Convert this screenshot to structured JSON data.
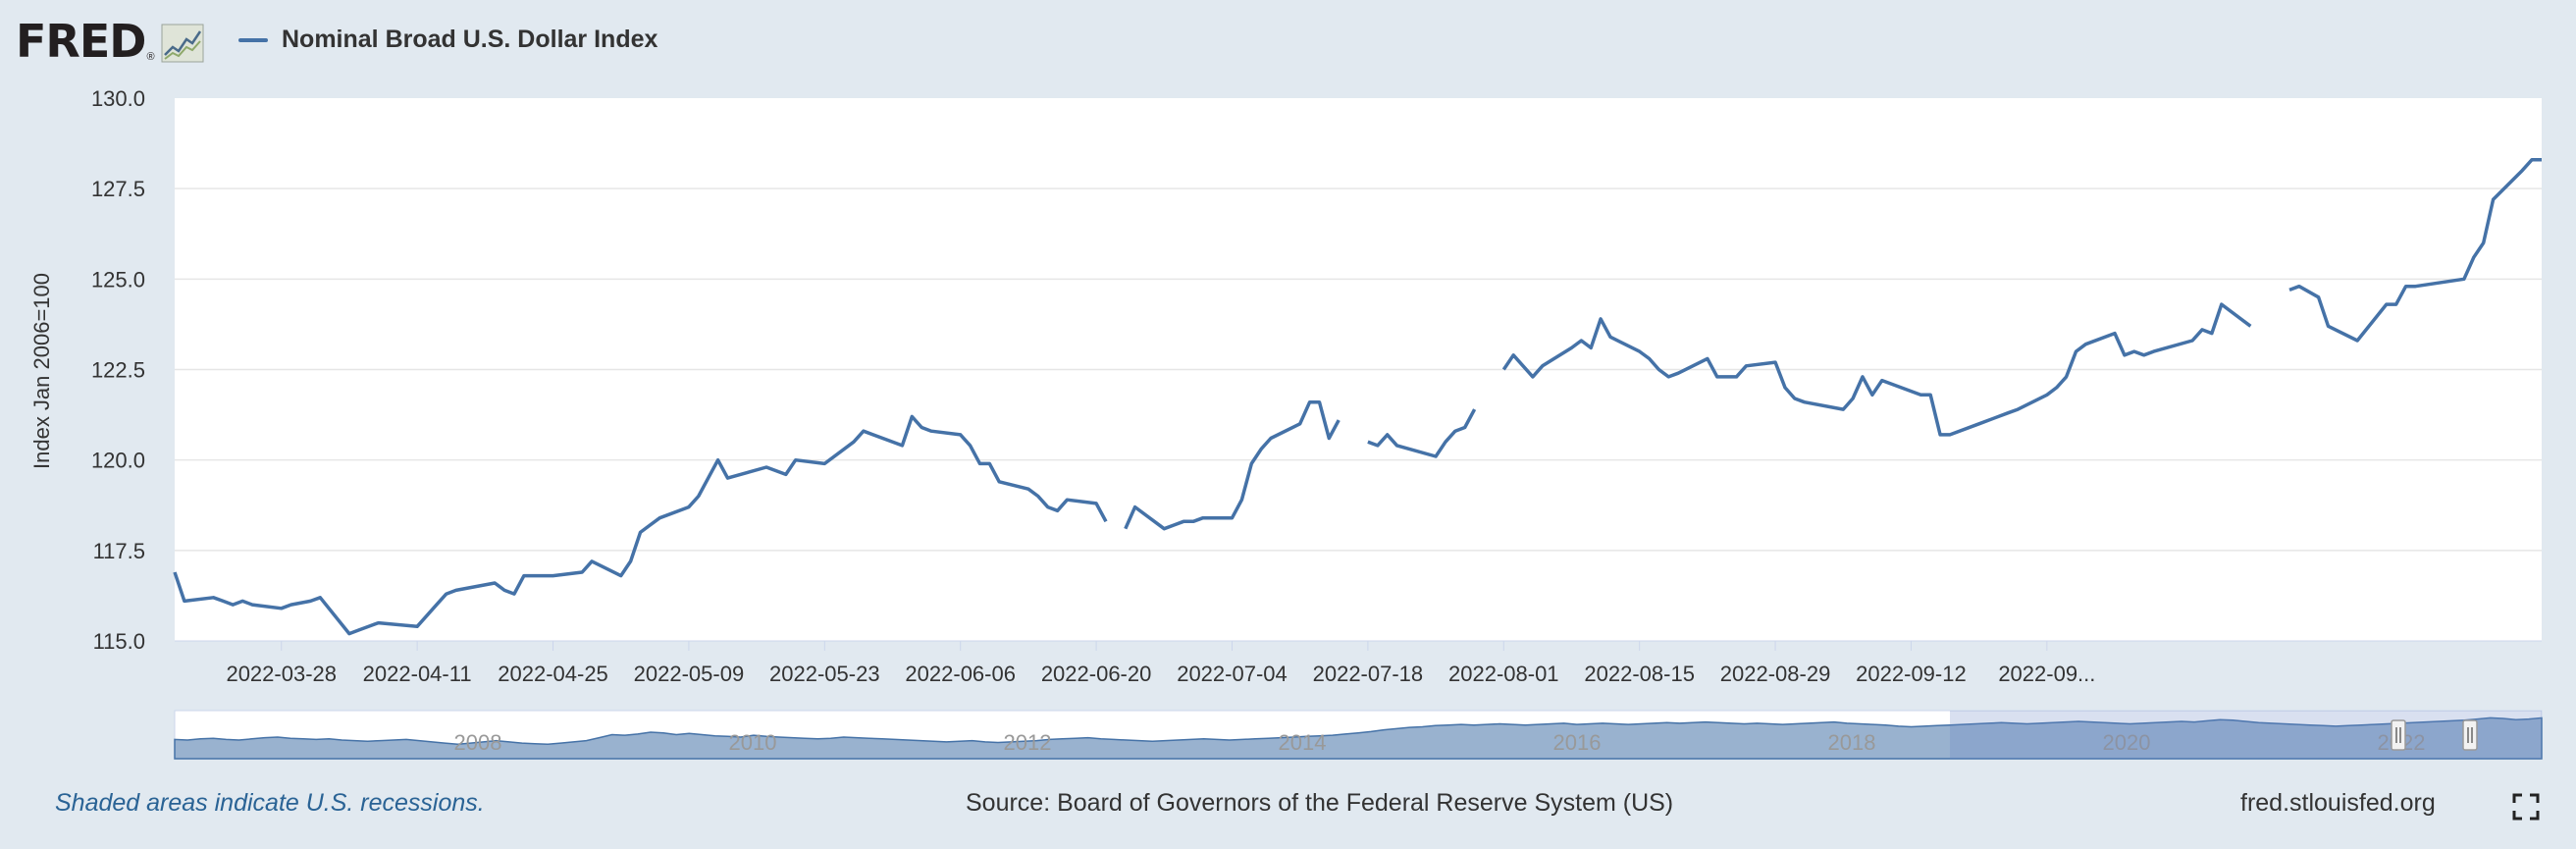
{
  "header": {
    "logo_text": "FRED",
    "logo_mark": "®",
    "logo_icon": "line-chart-icon"
  },
  "chart_data": {
    "type": "line",
    "series": [
      {
        "name": "Nominal Broad U.S. Dollar Index",
        "color": "#4572a7",
        "segments": [
          [
            [
              "2022-03-17",
              116.9
            ],
            [
              "2022-03-18",
              116.1
            ],
            [
              "2022-03-21",
              116.2
            ],
            [
              "2022-03-22",
              116.1
            ],
            [
              "2022-03-23",
              116.0
            ],
            [
              "2022-03-24",
              116.1
            ],
            [
              "2022-03-25",
              116.0
            ],
            [
              "2022-03-28",
              115.9
            ],
            [
              "2022-03-29",
              116.0
            ],
            [
              "2022-03-31",
              116.1
            ],
            [
              "2022-04-01",
              116.2
            ],
            [
              "2022-04-04",
              115.2
            ],
            [
              "2022-04-05",
              115.3
            ],
            [
              "2022-04-07",
              115.5
            ],
            [
              "2022-04-11",
              115.4
            ],
            [
              "2022-04-12",
              115.7
            ],
            [
              "2022-04-13",
              116.0
            ],
            [
              "2022-04-14",
              116.3
            ],
            [
              "2022-04-15",
              116.4
            ],
            [
              "2022-04-19",
              116.6
            ],
            [
              "2022-04-20",
              116.4
            ],
            [
              "2022-04-21",
              116.3
            ],
            [
              "2022-04-22",
              116.8
            ],
            [
              "2022-04-25",
              116.8
            ],
            [
              "2022-04-28",
              116.9
            ],
            [
              "2022-04-29",
              117.2
            ],
            [
              "2022-05-02",
              116.8
            ],
            [
              "2022-05-03",
              117.2
            ],
            [
              "2022-05-04",
              118.0
            ],
            [
              "2022-05-05",
              118.2
            ],
            [
              "2022-05-06",
              118.4
            ],
            [
              "2022-05-09",
              118.7
            ],
            [
              "2022-05-10",
              119.0
            ],
            [
              "2022-05-11",
              119.5
            ],
            [
              "2022-05-12",
              120.0
            ],
            [
              "2022-05-13",
              119.5
            ],
            [
              "2022-05-17",
              119.8
            ],
            [
              "2022-05-19",
              119.6
            ],
            [
              "2022-05-20",
              120.0
            ],
            [
              "2022-05-23",
              119.9
            ],
            [
              "2022-05-26",
              120.5
            ],
            [
              "2022-05-27",
              120.8
            ],
            [
              "2022-05-31",
              120.4
            ],
            [
              "2022-06-01",
              121.2
            ],
            [
              "2022-06-02",
              120.9
            ],
            [
              "2022-06-03",
              120.8
            ],
            [
              "2022-06-06",
              120.7
            ],
            [
              "2022-06-07",
              120.4
            ],
            [
              "2022-06-08",
              119.9
            ],
            [
              "2022-06-09",
              119.9
            ],
            [
              "2022-06-10",
              119.4
            ],
            [
              "2022-06-13",
              119.2
            ],
            [
              "2022-06-14",
              119.0
            ],
            [
              "2022-06-15",
              118.7
            ],
            [
              "2022-06-16",
              118.6
            ],
            [
              "2022-06-17",
              118.9
            ],
            [
              "2022-06-20",
              118.8
            ],
            [
              "2022-06-21",
              118.3
            ]
          ],
          [
            [
              "2022-06-23",
              118.1
            ],
            [
              "2022-06-24",
              118.7
            ],
            [
              "2022-06-27",
              118.1
            ],
            [
              "2022-06-28",
              118.2
            ],
            [
              "2022-06-29",
              118.3
            ],
            [
              "2022-06-30",
              118.3
            ],
            [
              "2022-07-01",
              118.4
            ],
            [
              "2022-07-04",
              118.4
            ],
            [
              "2022-07-05",
              118.9
            ],
            [
              "2022-07-06",
              119.9
            ],
            [
              "2022-07-07",
              120.3
            ],
            [
              "2022-07-08",
              120.6
            ],
            [
              "2022-07-11",
              121.0
            ],
            [
              "2022-07-12",
              121.6
            ],
            [
              "2022-07-13",
              121.6
            ],
            [
              "2022-07-14",
              120.6
            ],
            [
              "2022-07-15",
              121.1
            ]
          ],
          [
            [
              "2022-07-18",
              120.5
            ],
            [
              "2022-07-19",
              120.4
            ],
            [
              "2022-07-20",
              120.7
            ],
            [
              "2022-07-21",
              120.4
            ],
            [
              "2022-07-25",
              120.1
            ],
            [
              "2022-07-26",
              120.5
            ],
            [
              "2022-07-27",
              120.8
            ],
            [
              "2022-07-28",
              120.9
            ],
            [
              "2022-07-29",
              121.4
            ]
          ],
          [
            [
              "2022-08-01",
              122.5
            ],
            [
              "2022-08-02",
              122.9
            ],
            [
              "2022-08-03",
              122.6
            ],
            [
              "2022-08-04",
              122.3
            ],
            [
              "2022-08-05",
              122.6
            ],
            [
              "2022-08-08",
              123.1
            ],
            [
              "2022-08-09",
              123.3
            ],
            [
              "2022-08-10",
              123.1
            ],
            [
              "2022-08-11",
              123.9
            ],
            [
              "2022-08-12",
              123.4
            ],
            [
              "2022-08-15",
              123.0
            ],
            [
              "2022-08-16",
              122.8
            ],
            [
              "2022-08-17",
              122.5
            ],
            [
              "2022-08-18",
              122.3
            ],
            [
              "2022-08-19",
              122.4
            ],
            [
              "2022-08-22",
              122.8
            ],
            [
              "2022-08-23",
              122.3
            ],
            [
              "2022-08-24",
              122.3
            ],
            [
              "2022-08-25",
              122.3
            ],
            [
              "2022-08-26",
              122.6
            ],
            [
              "2022-08-29",
              122.7
            ],
            [
              "2022-08-30",
              122.0
            ],
            [
              "2022-08-31",
              121.7
            ],
            [
              "2022-09-01",
              121.6
            ],
            [
              "2022-09-05",
              121.4
            ],
            [
              "2022-09-06",
              121.7
            ],
            [
              "2022-09-07",
              122.3
            ],
            [
              "2022-09-08",
              121.8
            ],
            [
              "2022-09-09",
              122.2
            ],
            [
              "2022-09-12",
              121.9
            ],
            [
              "2022-09-13",
              121.8
            ],
            [
              "2022-09-14",
              121.8
            ],
            [
              "2022-09-15",
              120.7
            ],
            [
              "2022-09-16",
              120.7
            ],
            [
              "2022-09-19",
              121.0
            ],
            [
              "2022-09-22",
              121.3
            ],
            [
              "2022-09-23",
              121.4
            ],
            [
              "2022-09-26",
              121.8
            ],
            [
              "2022-09-27",
              122.0
            ],
            [
              "2022-09-28",
              122.3
            ],
            [
              "2022-09-29",
              123.0
            ],
            [
              "2022-09-30",
              123.2
            ],
            [
              "2022-10-03",
              123.5
            ],
            [
              "2022-10-04",
              122.9
            ],
            [
              "2022-10-05",
              123.0
            ],
            [
              "2022-10-06",
              122.9
            ],
            [
              "2022-10-07",
              123.0
            ],
            [
              "2022-10-11",
              123.3
            ],
            [
              "2022-10-12",
              123.6
            ],
            [
              "2022-10-13",
              123.5
            ],
            [
              "2022-10-14",
              124.3
            ],
            [
              "2022-10-17",
              123.7
            ]
          ],
          [
            [
              "2022-10-21",
              124.7
            ],
            [
              "2022-10-22",
              124.8
            ],
            [
              "2022-10-24",
              124.5
            ],
            [
              "2022-10-25",
              123.7
            ],
            [
              "2022-10-28",
              123.3
            ],
            [
              "2022-10-31",
              124.3
            ],
            [
              "2022-11-01",
              124.3
            ],
            [
              "2022-11-02",
              124.8
            ],
            [
              "2022-11-03",
              124.8
            ],
            [
              "2022-11-08",
              125.0
            ],
            [
              "2022-11-09",
              125.6
            ],
            [
              "2022-11-10",
              126.0
            ],
            [
              "2022-11-11",
              127.2
            ],
            [
              "2022-11-14",
              128.0
            ],
            [
              "2022-11-15",
              128.3
            ],
            [
              "2022-11-16",
              128.3
            ]
          ]
        ]
      }
    ],
    "x_ticks": [
      "2022-03-28",
      "2022-04-11",
      "2022-04-25",
      "2022-05-09",
      "2022-05-23",
      "2022-06-06",
      "2022-06-20",
      "2022-07-04",
      "2022-07-18",
      "2022-08-01",
      "2022-08-15",
      "2022-08-29",
      "2022-09-12",
      "2022-09..."
    ],
    "y_ticks": [
      "115.0",
      "117.5",
      "120.0",
      "122.5",
      "125.0",
      "127.5",
      "130.0"
    ],
    "ylim": [
      115,
      130
    ],
    "ylabel": "Index Jan 2006=100",
    "grid": true,
    "legend_placement": "top-left",
    "navigator": {
      "labels": [
        "2008",
        "2010",
        "2012",
        "2014",
        "2016",
        "2018",
        "2020",
        "2022"
      ],
      "range_start": 0.75,
      "range_end": 1.0,
      "profile": [
        92,
        91,
        93,
        94,
        92,
        91,
        93,
        95,
        96,
        94,
        93,
        92,
        93,
        91,
        90,
        89,
        90,
        91,
        92,
        90,
        88,
        86,
        84,
        86,
        88,
        90,
        88,
        86,
        85,
        84,
        86,
        88,
        90,
        95,
        100,
        99,
        101,
        104,
        103,
        100,
        102,
        100,
        98,
        97,
        96,
        99,
        97,
        96,
        95,
        94,
        93,
        94,
        96,
        95,
        94,
        93,
        92,
        91,
        90,
        89,
        88,
        89,
        90,
        88,
        87,
        88,
        89,
        90,
        92,
        93,
        94,
        95,
        93,
        92,
        91,
        90,
        89,
        90,
        91,
        92,
        93,
        92,
        91,
        92,
        93,
        94,
        95,
        96,
        97,
        98,
        99,
        101,
        103,
        105,
        108,
        110,
        112,
        113,
        115,
        116,
        117,
        116,
        117,
        118,
        117,
        116,
        117,
        118,
        119,
        117,
        118,
        119,
        118,
        117,
        118,
        119,
        120,
        119,
        120,
        121,
        120,
        119,
        118,
        119,
        118,
        117,
        118,
        119,
        120,
        121,
        119,
        118,
        117,
        116,
        114,
        113,
        114,
        115,
        116,
        117,
        118,
        119,
        120,
        119,
        118,
        119,
        120,
        121,
        122,
        121,
        120,
        119,
        118,
        119,
        120,
        121,
        122,
        121,
        123,
        125,
        124,
        122,
        120,
        119,
        118,
        117,
        116,
        115,
        114,
        115,
        116,
        117,
        118,
        119,
        120,
        121,
        122,
        123,
        124,
        126,
        128,
        127,
        125,
        126,
        128
      ]
    }
  },
  "footer": {
    "note": "Shaded areas indicate U.S. recessions.",
    "source": "Source: Board of Governors of the Federal Reserve System (US)",
    "site": "fred.stlouisfed.org",
    "fullscreen_icon": "fullscreen-icon"
  }
}
